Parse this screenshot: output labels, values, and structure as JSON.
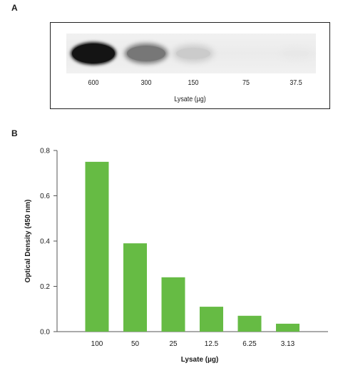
{
  "panel_a": {
    "letter": "A",
    "lanes": [
      "600",
      "300",
      "150",
      "75",
      "37.5"
    ],
    "band_intensity": [
      1.0,
      0.62,
      0.28,
      0.0,
      0.04
    ],
    "xlabel": "Lysate (µg)"
  },
  "panel_b": {
    "letter": "B"
  },
  "chart_data": {
    "type": "bar",
    "title": "",
    "categories": [
      "100",
      "50",
      "25",
      "12.5",
      "6.25",
      "3.13"
    ],
    "values": [
      0.75,
      0.39,
      0.24,
      0.11,
      0.07,
      0.035
    ],
    "xlabel": "Lysate (µg)",
    "ylabel": "Optical Density (450 nm)",
    "ylim": [
      0,
      0.8
    ],
    "yticks": [
      "0.0",
      "0.2",
      "0.4",
      "0.6",
      "0.8"
    ],
    "bar_color": "#66bb44",
    "grid": false,
    "legend": "none"
  }
}
